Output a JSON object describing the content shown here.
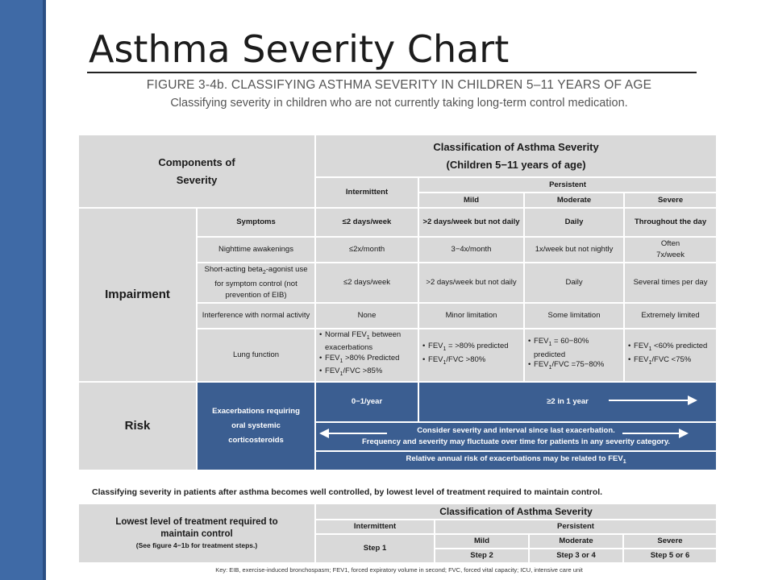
{
  "title": "Asthma Severity Chart",
  "subtitle": "FIGURE 3-4b. CLASSIFYING ASTHMA SEVERITY IN CHILDREN 5–11 YEARS OF AGE",
  "subtitle2": "Classifying severity in children who are not currently taking long-term control medication.",
  "colors": {
    "accent_blue": "#3b5e91",
    "cell_gray": "#d9d9d9",
    "side_band": "#3f6aa6"
  },
  "main_table": {
    "components_header_line1": "Components of",
    "components_header_line2": "Severity",
    "classification_line1": "Classification of Asthma Severity",
    "classification_line2": "(Children 5−11 years of age)",
    "intermittent": "Intermittent",
    "persistent": "Persistent",
    "mild": "Mild",
    "moderate": "Moderate",
    "severe": "Severe",
    "impairment": "Impairment",
    "rows": {
      "symptoms": {
        "label": "Symptoms",
        "intermittent": "≤2 days/week",
        "mild": ">2 days/week but not daily",
        "moderate": "Daily",
        "severe": "Throughout  the day"
      },
      "nighttime": {
        "label": "Nighttime awakenings",
        "intermittent": "≤2x/month",
        "mild": "3−4x/month",
        "moderate": "1x/week but not nightly",
        "severe_line1": "Often",
        "severe_line2": "7x/week"
      },
      "saba": {
        "label_pre": "Short-acting beta",
        "label_sub": "2",
        "label_post": "-agonist use for symptom control (not prevention of EIB)",
        "intermittent": "≤2 days/week",
        "mild": ">2 days/week but not daily",
        "moderate": "Daily",
        "severe": "Several times per day"
      },
      "interference": {
        "label": "Interference with normal activity",
        "intermittent": "None",
        "mild": "Minor limitation",
        "moderate": "Some limitation",
        "severe": "Extremely limited"
      },
      "lung": {
        "label": "Lung function",
        "intermittent_1": "Normal FEV",
        "intermittent_1b": " between exacerbations",
        "intermittent_2": "FEV",
        "intermittent_2b": " >80% Predicted",
        "intermittent_3": "FEV",
        "intermittent_3b": "/FVC >85%",
        "mild_1": "FEV",
        "mild_1b": " = >80% predicted",
        "mild_2": "FEV",
        "mild_2b": "/FVC >80%",
        "moderate_1": "FEV",
        "moderate_1b": " = 60−80% predicted",
        "moderate_2": "FEV",
        "moderate_2b": "/FVC =75−80%",
        "severe_1": "FEV",
        "severe_1b": " <60% predicted",
        "severe_2": "FEV",
        "severe_2b": "/FVC <75%",
        "sub": "1"
      }
    },
    "risk": "Risk",
    "exacerbations": "Exacerbations requiring oral systemic corticosteroids",
    "risk_intermittent": "0−1/year",
    "risk_persistent": "≥2 in 1 year",
    "consider_line1": "Consider severity and interval since last exacerbation.",
    "consider_line2": "Frequency and severity may fluctuate over time for patients in any severity category.",
    "relative_risk_pre": "Relative annual risk of exacerbations may be related to FEV",
    "relative_risk_sub": "1"
  },
  "note": "Classifying  severity in patients after asthma becomes well controlled, by lowest level of treatment required to maintain control.",
  "bottom_table": {
    "lowest_level_line1": "Lowest level of treatment required to",
    "lowest_level_line2": "maintain control",
    "lowest_level_note": "(See figure 4−1b for treatment steps.)",
    "classification": "Classification of Asthma Severity",
    "intermittent": "Intermittent",
    "persistent": "Persistent",
    "step1": "Step 1",
    "mild": "Mild",
    "moderate": "Moderate",
    "severe": "Severe",
    "step2": "Step 2",
    "step3": "Step 3 or 4",
    "step5": "Step 5 or 6"
  },
  "key": "Key: EIB, exercise-induced bronchospasm; FEV1, forced expiratory volume in second; FVC, forced vital capacity; ICU, intensive care unit"
}
